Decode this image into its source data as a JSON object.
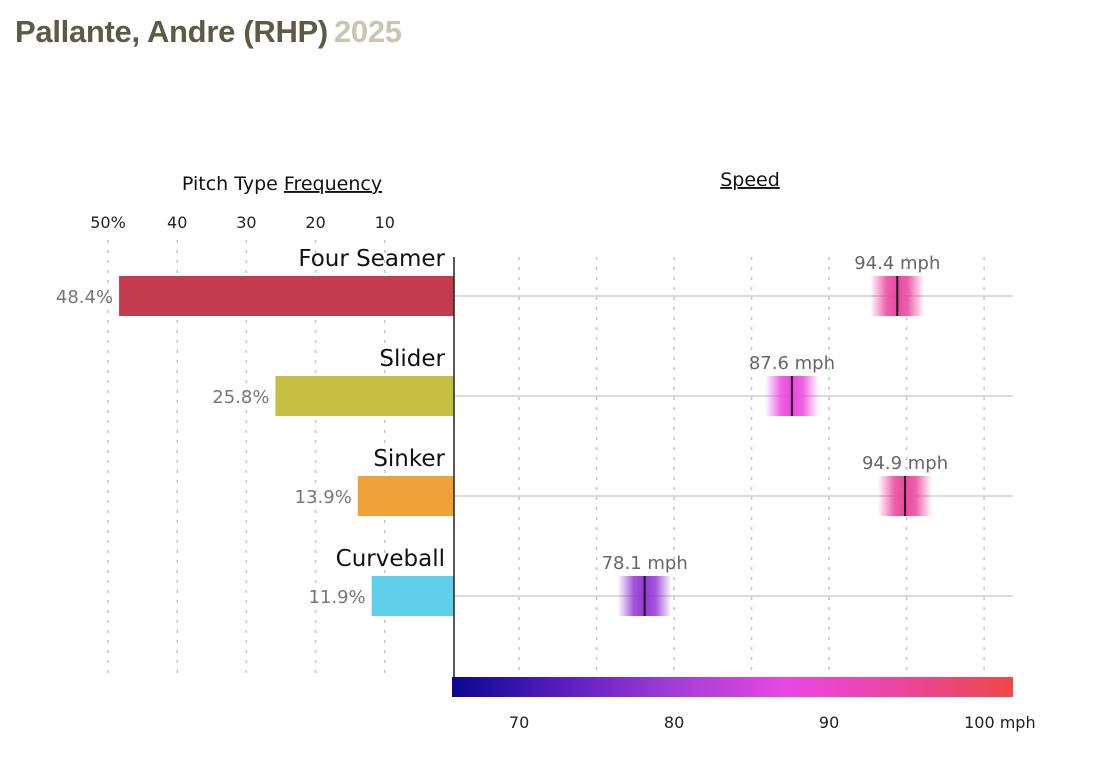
{
  "title": {
    "player": "Pallante, Andre (RHP)",
    "year": "2025"
  },
  "chart_data": {
    "type": "bar",
    "frequency": {
      "heading_prefix": "Pitch Type ",
      "heading_link": "Frequency",
      "tick_values": [
        50,
        40,
        30,
        20,
        10
      ],
      "tick_labels": [
        "50%",
        "40",
        "30",
        "20",
        "10"
      ],
      "xlim": [
        0,
        50
      ],
      "grid": true
    },
    "speed": {
      "heading": "Speed",
      "tick_values": [
        70,
        80,
        90,
        100
      ],
      "tick_labels": [
        "70",
        "80",
        "90",
        "100 mph"
      ],
      "xlim": [
        65.8,
        102
      ],
      "grid": true,
      "colorscale": [
        "#0a0890",
        "#5a1ec0",
        "#a43ed8",
        "#ea46e2",
        "#ea469e",
        "#ee4848"
      ]
    },
    "pitches": [
      {
        "name": "Four Seamer",
        "frequency": 48.4,
        "frequency_label": "48.4%",
        "speed": 94.4,
        "speed_label": "94.4 mph",
        "color": "#c23c4e"
      },
      {
        "name": "Slider",
        "frequency": 25.8,
        "frequency_label": "25.8%",
        "speed": 87.6,
        "speed_label": "87.6 mph",
        "color": "#c4bf40"
      },
      {
        "name": "Sinker",
        "frequency": 13.9,
        "frequency_label": "13.9%",
        "speed": 94.9,
        "speed_label": "94.9 mph",
        "color": "#f0a23a"
      },
      {
        "name": "Curveball",
        "frequency": 11.9,
        "frequency_label": "11.9%",
        "speed": 78.1,
        "speed_label": "78.1 mph",
        "color": "#5ed0ea"
      }
    ]
  }
}
